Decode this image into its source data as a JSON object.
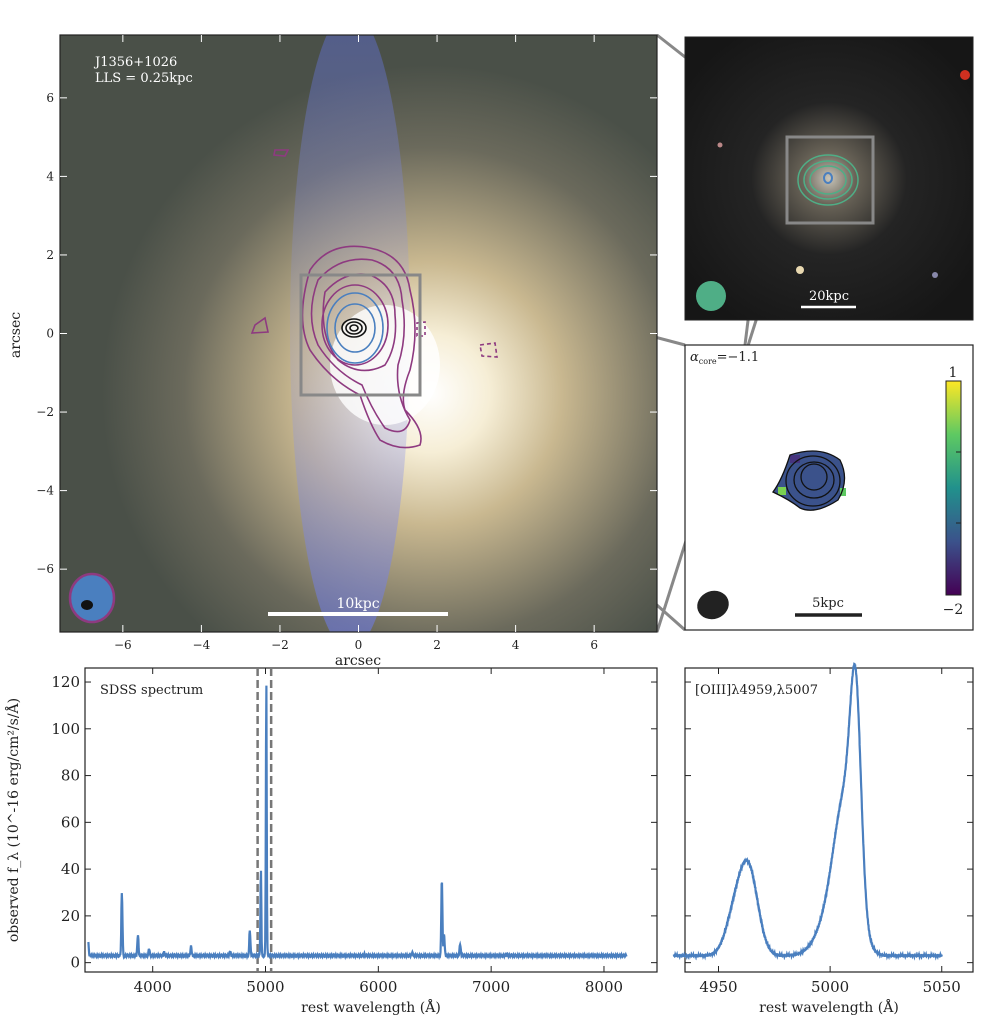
{
  "main_image": {
    "source_label": "J1356+1026",
    "lls_label": "LLS = 0.25kpc",
    "scalebar_label": "10kpc",
    "xlabel": "arcsec",
    "ylabel": "arcsec",
    "xticks": [
      "−6",
      "−4",
      "−2",
      "0",
      "2",
      "4",
      "6"
    ],
    "yticks": [
      "6",
      "4",
      "2",
      "0",
      "−2",
      "−4",
      "−6"
    ],
    "xtick_values": [
      -6,
      -4,
      -2,
      0,
      2,
      4,
      6
    ],
    "ytick_values": [
      6,
      4,
      2,
      0,
      -2,
      -4,
      -6
    ],
    "range": [
      -7.6,
      7.6
    ],
    "contour_color": "#8e3a80",
    "inner_contour_color": "#4a7fbf"
  },
  "wide_image": {
    "scalebar_label": "20kpc",
    "contour_color": "#4fae86"
  },
  "spectral_index": {
    "label": "α",
    "label_sub": "core",
    "value_text": "=−1.1",
    "scalebar_label": "5kpc",
    "colorbar": {
      "min_label": "−2",
      "max_label": "1",
      "min": -2,
      "max": 1
    }
  },
  "chart_data": [
    {
      "type": "line",
      "title": "SDSS spectrum",
      "xlabel": "rest wavelength (Å)",
      "ylabel": "observed f_λ (10^-16 erg/cm²/s/Å)",
      "xlim": [
        3400,
        8470
      ],
      "ylim": [
        -4,
        126
      ],
      "xticks": [
        "4000",
        "5000",
        "6000",
        "7000",
        "8000"
      ],
      "xtick_values": [
        4000,
        5000,
        6000,
        7000,
        8000
      ],
      "yticks": [
        "0",
        "20",
        "40",
        "60",
        "80",
        "100",
        "120"
      ],
      "ytick_values": [
        0,
        20,
        40,
        60,
        80,
        100,
        120
      ],
      "x_range_data": [
        3430,
        8200
      ],
      "continuum": 3,
      "lines": [
        {
          "x": 3426,
          "peak": 11
        },
        {
          "x": 3727,
          "peak": 30
        },
        {
          "x": 3869,
          "peak": 12
        },
        {
          "x": 3968,
          "peak": 6
        },
        {
          "x": 4102,
          "peak": 4.5
        },
        {
          "x": 4340,
          "peak": 7
        },
        {
          "x": 4686,
          "peak": 5
        },
        {
          "x": 4861,
          "peak": 14
        },
        {
          "x": 4959,
          "peak": 40
        },
        {
          "x": 5007,
          "peak": 119
        },
        {
          "x": 5876,
          "peak": 3.5
        },
        {
          "x": 6300,
          "peak": 4.5
        },
        {
          "x": 6563,
          "peak": 36
        },
        {
          "x": 6583,
          "peak": 12
        },
        {
          "x": 6725,
          "peak": 8
        },
        {
          "x": 7136,
          "peak": 3.5
        }
      ],
      "dashed_lines": [
        4930,
        5050
      ],
      "series_color": "#4a7fbf"
    },
    {
      "type": "line",
      "title": "[OIII]λ4959,λ5007",
      "xlabel": "rest wavelength (Å)",
      "xlim": [
        4935,
        5064
      ],
      "ylim": [
        -4,
        126
      ],
      "xticks": [
        "4950",
        "5000",
        "5050"
      ],
      "xtick_values": [
        4950,
        5000,
        5050
      ],
      "x_range_data": [
        4930,
        5050
      ],
      "continuum": 3,
      "components": [
        {
          "x": 4963.5,
          "peak": 36,
          "sigma": 4.2
        },
        {
          "x": 4957,
          "peak": 15,
          "sigma": 4
        },
        {
          "x": 5011.5,
          "peak": 80,
          "sigma": 2.4
        },
        {
          "x": 5007,
          "peak": 60,
          "sigma": 5
        },
        {
          "x": 5000,
          "peak": 14,
          "sigma": 6
        }
      ],
      "series_color": "#4a7fbf"
    }
  ]
}
